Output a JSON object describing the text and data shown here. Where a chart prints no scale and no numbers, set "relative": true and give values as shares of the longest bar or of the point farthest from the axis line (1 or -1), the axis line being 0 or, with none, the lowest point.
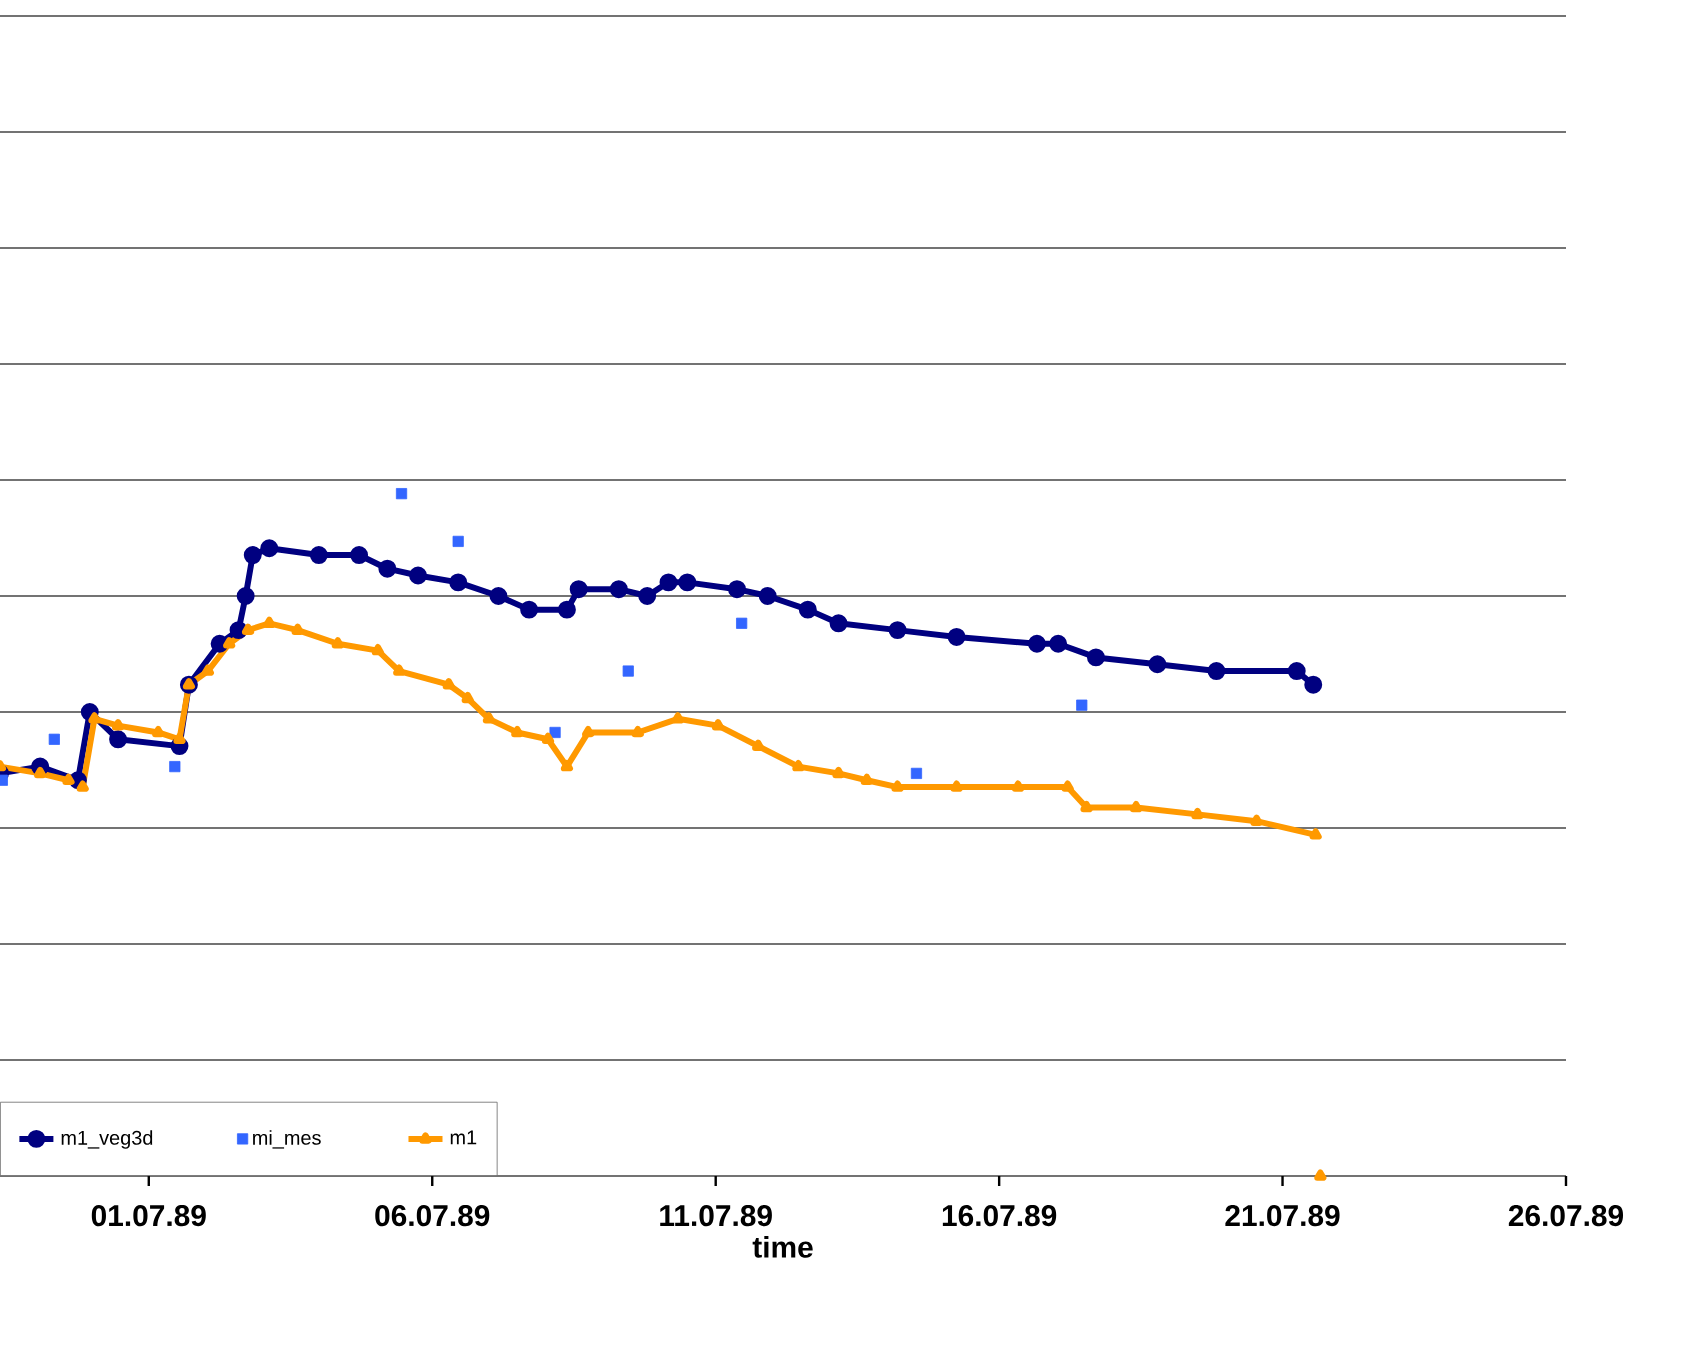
{
  "chart_data": {
    "type": "line",
    "xlabel": "time",
    "relative": true,
    "grid": "y",
    "legend": "bottom left",
    "xlim": [
      "1989-06-28T09:00",
      "1989-07-26"
    ],
    "xticks": [
      {
        "value": "1989-07-01",
        "label": "01.07.89"
      },
      {
        "value": "1989-07-06",
        "label": "06.07.89"
      },
      {
        "value": "1989-07-11",
        "label": "11.07.89"
      },
      {
        "value": "1989-07-16",
        "label": "16.07.89"
      },
      {
        "value": "1989-07-21",
        "label": "21.07.89"
      },
      {
        "value": "1989-07-26",
        "label": "26.07.89"
      }
    ],
    "series": [
      {
        "name": "m1_veg3d",
        "marker": "circle",
        "color": "#000080",
        "x": [
          "1989-06-28T09:00",
          "1989-06-29T02:00",
          "1989-06-29T18:00",
          "1989-06-29T23:00",
          "1989-06-30T11:00",
          "1989-07-01T13:00",
          "1989-07-01T17:00",
          "1989-07-02T06:00",
          "1989-07-02T14:00",
          "1989-07-02T17:00",
          "1989-07-02T20:00",
          "1989-07-03T03:00",
          "1989-07-04T00:00",
          "1989-07-04T17:00",
          "1989-07-05T05:00",
          "1989-07-05T18:00",
          "1989-07-06T11:00",
          "1989-07-07T04:00",
          "1989-07-07T17:00",
          "1989-07-08T09:00",
          "1989-07-08T14:00",
          "1989-07-09T07:00",
          "1989-07-09T19:00",
          "1989-07-10T04:00",
          "1989-07-10T12:00",
          "1989-07-11T09:00",
          "1989-07-11T22:00",
          "1989-07-12T15:00",
          "1989-07-13T04:00",
          "1989-07-14T05:00",
          "1989-07-15T06:00",
          "1989-07-16T16:00",
          "1989-07-17T01:00",
          "1989-07-17T17:00",
          "1989-07-18T19:00",
          "1989-07-19T20:00",
          "1989-07-21T06:00",
          "1989-07-21T13:00"
        ],
        "values": [
          0.59,
          0.6,
          0.58,
          0.68,
          0.64,
          0.63,
          0.72,
          0.78,
          0.8,
          0.85,
          0.91,
          0.92,
          0.91,
          0.91,
          0.89,
          0.88,
          0.87,
          0.85,
          0.83,
          0.83,
          0.86,
          0.86,
          0.85,
          0.87,
          0.87,
          0.86,
          0.85,
          0.83,
          0.81,
          0.8,
          0.79,
          0.78,
          0.78,
          0.76,
          0.75,
          0.74,
          0.74,
          0.72
        ]
      },
      {
        "name": "mi_mes",
        "type": "scatter",
        "marker": "square",
        "color": "#3366ff",
        "x": [
          "1989-06-28T10:00",
          "1989-06-29T08:00",
          "1989-07-01T11:00",
          "1989-07-05T11:00",
          "1989-07-06T11:00",
          "1989-07-08T04:00",
          "1989-07-09T11:00",
          "1989-07-11T11:00",
          "1989-07-14T13:00",
          "1989-07-17T11:00"
        ],
        "values": [
          0.58,
          0.64,
          0.6,
          1.0,
          0.93,
          0.65,
          0.74,
          0.81,
          0.59,
          0.69
        ]
      },
      {
        "name": "m1",
        "marker": "triangle",
        "color": "#ff9900",
        "x": [
          "1989-06-28T09:00",
          "1989-06-29T02:00",
          "1989-06-29T14:00",
          "1989-06-29T20:00",
          "1989-06-30T01:00",
          "1989-06-30T11:00",
          "1989-07-01T04:00",
          "1989-07-01T13:00",
          "1989-07-01T17:00",
          "1989-07-02T01:00",
          "1989-07-02T10:00",
          "1989-07-02T18:00",
          "1989-07-03T03:00",
          "1989-07-03T15:00",
          "1989-07-04T08:00",
          "1989-07-05T01:00",
          "1989-07-05T10:00",
          "1989-07-06T07:00",
          "1989-07-06T15:00",
          "1989-07-07T00:00",
          "1989-07-07T12:00",
          "1989-07-08T01:00",
          "1989-07-08T09:00",
          "1989-07-08T18:00",
          "1989-07-09T15:00",
          "1989-07-10T08:00",
          "1989-07-11T01:00",
          "1989-07-11T18:00",
          "1989-07-12T11:00",
          "1989-07-13T04:00",
          "1989-07-13T16:00",
          "1989-07-14T05:00",
          "1989-07-15T06:00",
          "1989-07-16T08:00",
          "1989-07-17T05:00",
          "1989-07-17T13:00",
          "1989-07-18T10:00",
          "1989-07-19T12:00",
          "1989-07-20T13:00",
          "1989-07-21T14:00",
          "1989-07-21T15:00",
          "1989-07-21T16:00"
        ],
        "values": [
          0.6,
          0.59,
          0.58,
          0.57,
          0.67,
          0.66,
          0.65,
          0.64,
          0.72,
          0.74,
          0.78,
          0.8,
          0.81,
          0.8,
          0.78,
          0.77,
          0.74,
          0.72,
          0.7,
          0.67,
          0.65,
          0.64,
          0.6,
          0.65,
          0.65,
          0.67,
          0.66,
          0.63,
          0.6,
          0.59,
          0.58,
          0.57,
          0.57,
          0.57,
          0.57,
          0.54,
          0.54,
          0.53,
          0.52,
          0.5,
          null,
          0
        ]
      }
    ]
  }
}
